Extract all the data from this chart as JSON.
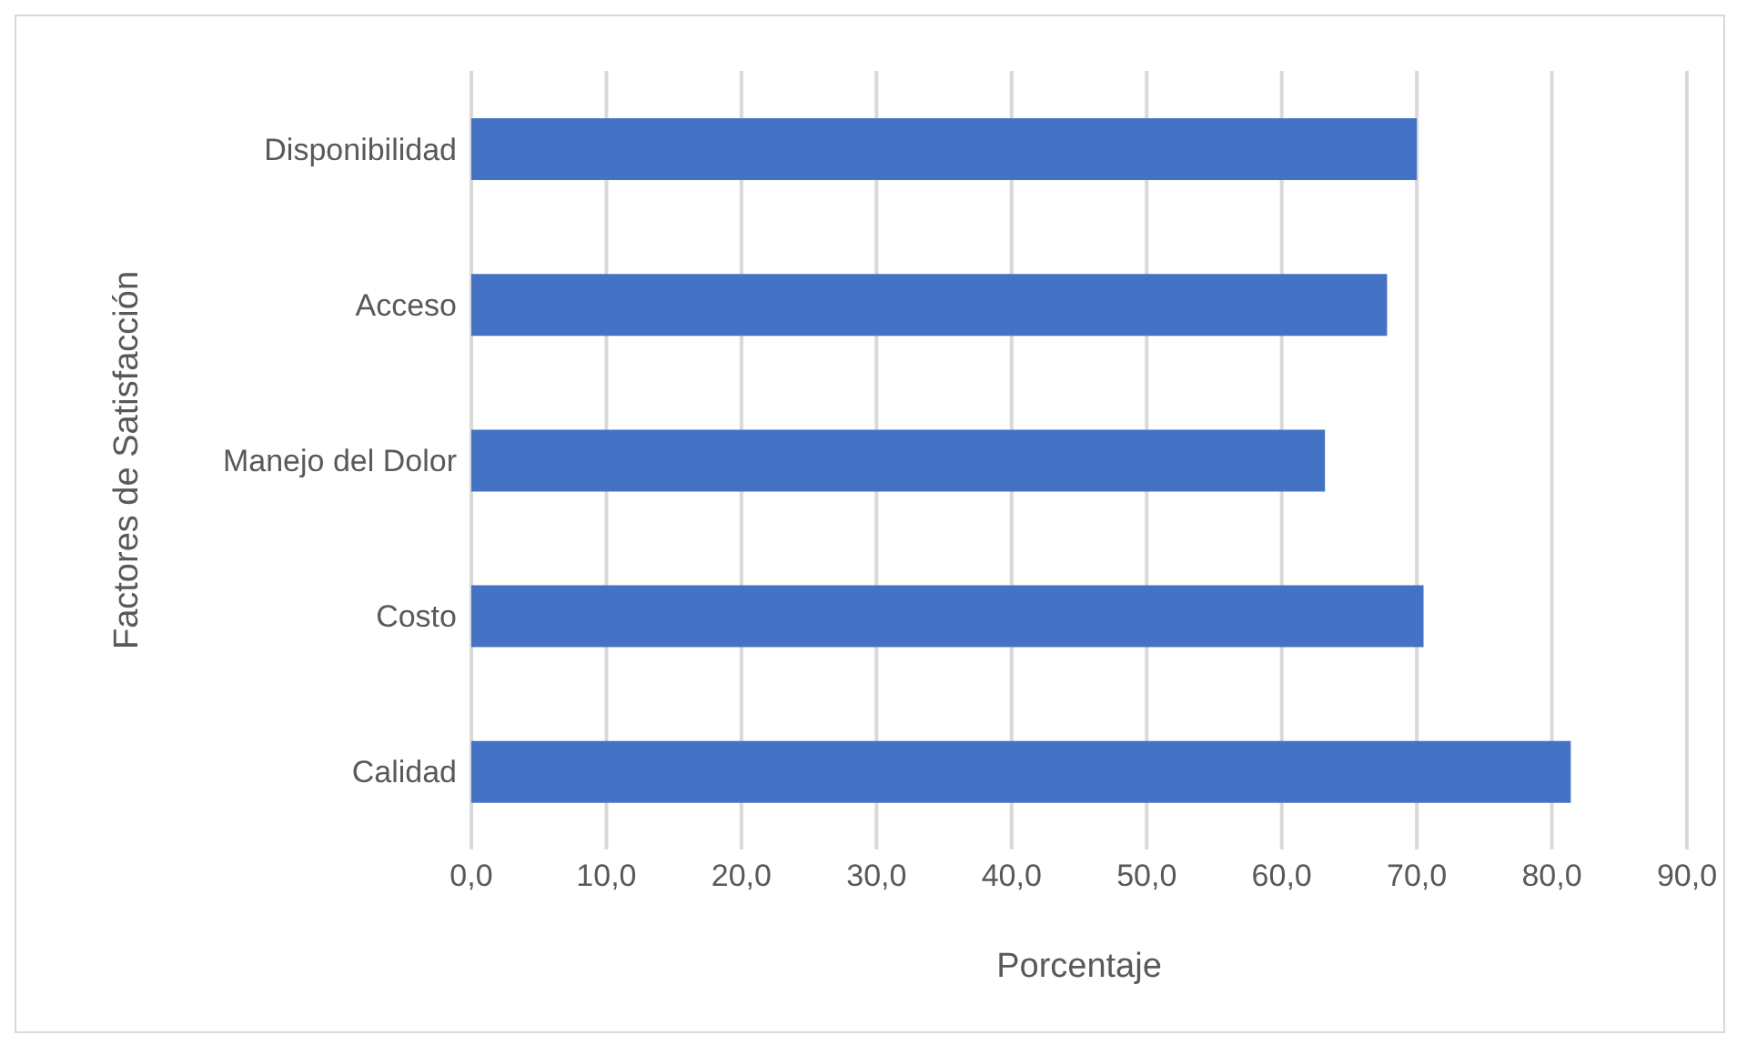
{
  "chart_data": {
    "type": "bar",
    "orientation": "horizontal",
    "xlabel": "Porcentaje",
    "ylabel": "Factores de Satisfacción",
    "categories": [
      "Disponibilidad",
      "Acceso",
      "Manejo del Dolor",
      "Costo",
      "Calidad"
    ],
    "values": [
      70.0,
      67.8,
      63.2,
      70.5,
      81.4
    ],
    "color": "#4472c4",
    "xlim": [
      0,
      90
    ],
    "xticks": [
      {
        "value": 0,
        "label": "0,0"
      },
      {
        "value": 10,
        "label": "10,0"
      },
      {
        "value": 20,
        "label": "20,0"
      },
      {
        "value": 30,
        "label": "30,0"
      },
      {
        "value": 40,
        "label": "40,0"
      },
      {
        "value": 50,
        "label": "50,0"
      },
      {
        "value": 60,
        "label": "60,0"
      },
      {
        "value": 70,
        "label": "70,0"
      },
      {
        "value": 80,
        "label": "80,0"
      },
      {
        "value": 90,
        "label": "90,0"
      }
    ],
    "grid": "x",
    "legend": false
  }
}
